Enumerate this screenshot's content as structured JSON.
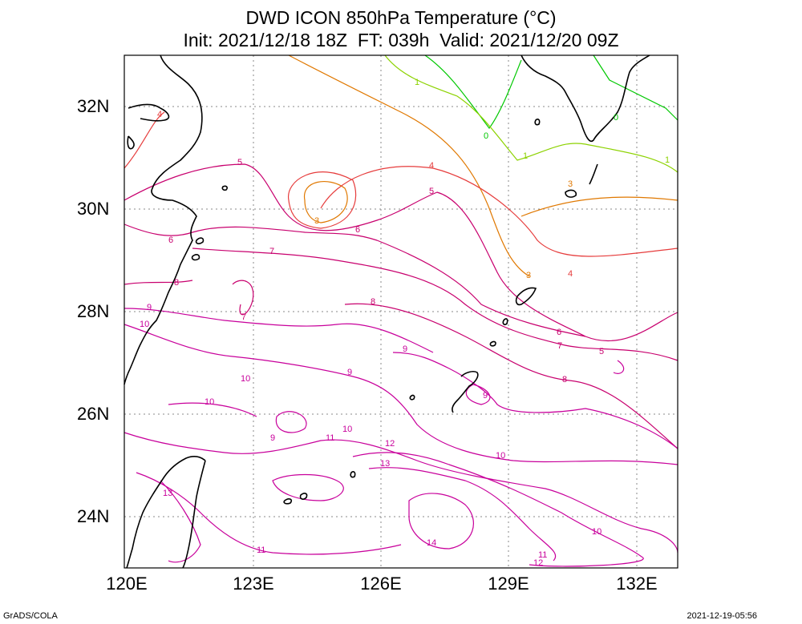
{
  "title_line1": "DWD ICON 850hPa Temperature (°C)",
  "title_line2": "Init: 2021/12/18 18Z  FT: 039h  Valid: 2021/12/20 09Z",
  "lat_labels": [
    "32N",
    "30N",
    "28N",
    "26N",
    "24N"
  ],
  "lon_labels": [
    "120E",
    "123E",
    "126E",
    "129E",
    "132E"
  ],
  "footer_left": "GrADS/COLA",
  "footer_right": "2021-12-19-05:56",
  "colors": {
    "c0": "#00c800",
    "c1": "#8cd200",
    "c3": "#e07800",
    "c4": "#e63c3c",
    "c5to8": "#c8006e",
    "c9to14": "#c8009b",
    "coast": "#000000",
    "grid": "#888888"
  },
  "contour_labels": [
    "0",
    "0",
    "1",
    "1",
    "1",
    "3",
    "3",
    "3",
    "4",
    "4",
    "4",
    "5",
    "5",
    "5",
    "6",
    "6",
    "6",
    "7",
    "7",
    "7",
    "8",
    "8",
    "8",
    "9",
    "9",
    "9",
    "9",
    "9",
    "10",
    "10",
    "10",
    "10",
    "10",
    "10",
    "11",
    "11",
    "11",
    "12",
    "12",
    "13",
    "13",
    "14"
  ]
}
